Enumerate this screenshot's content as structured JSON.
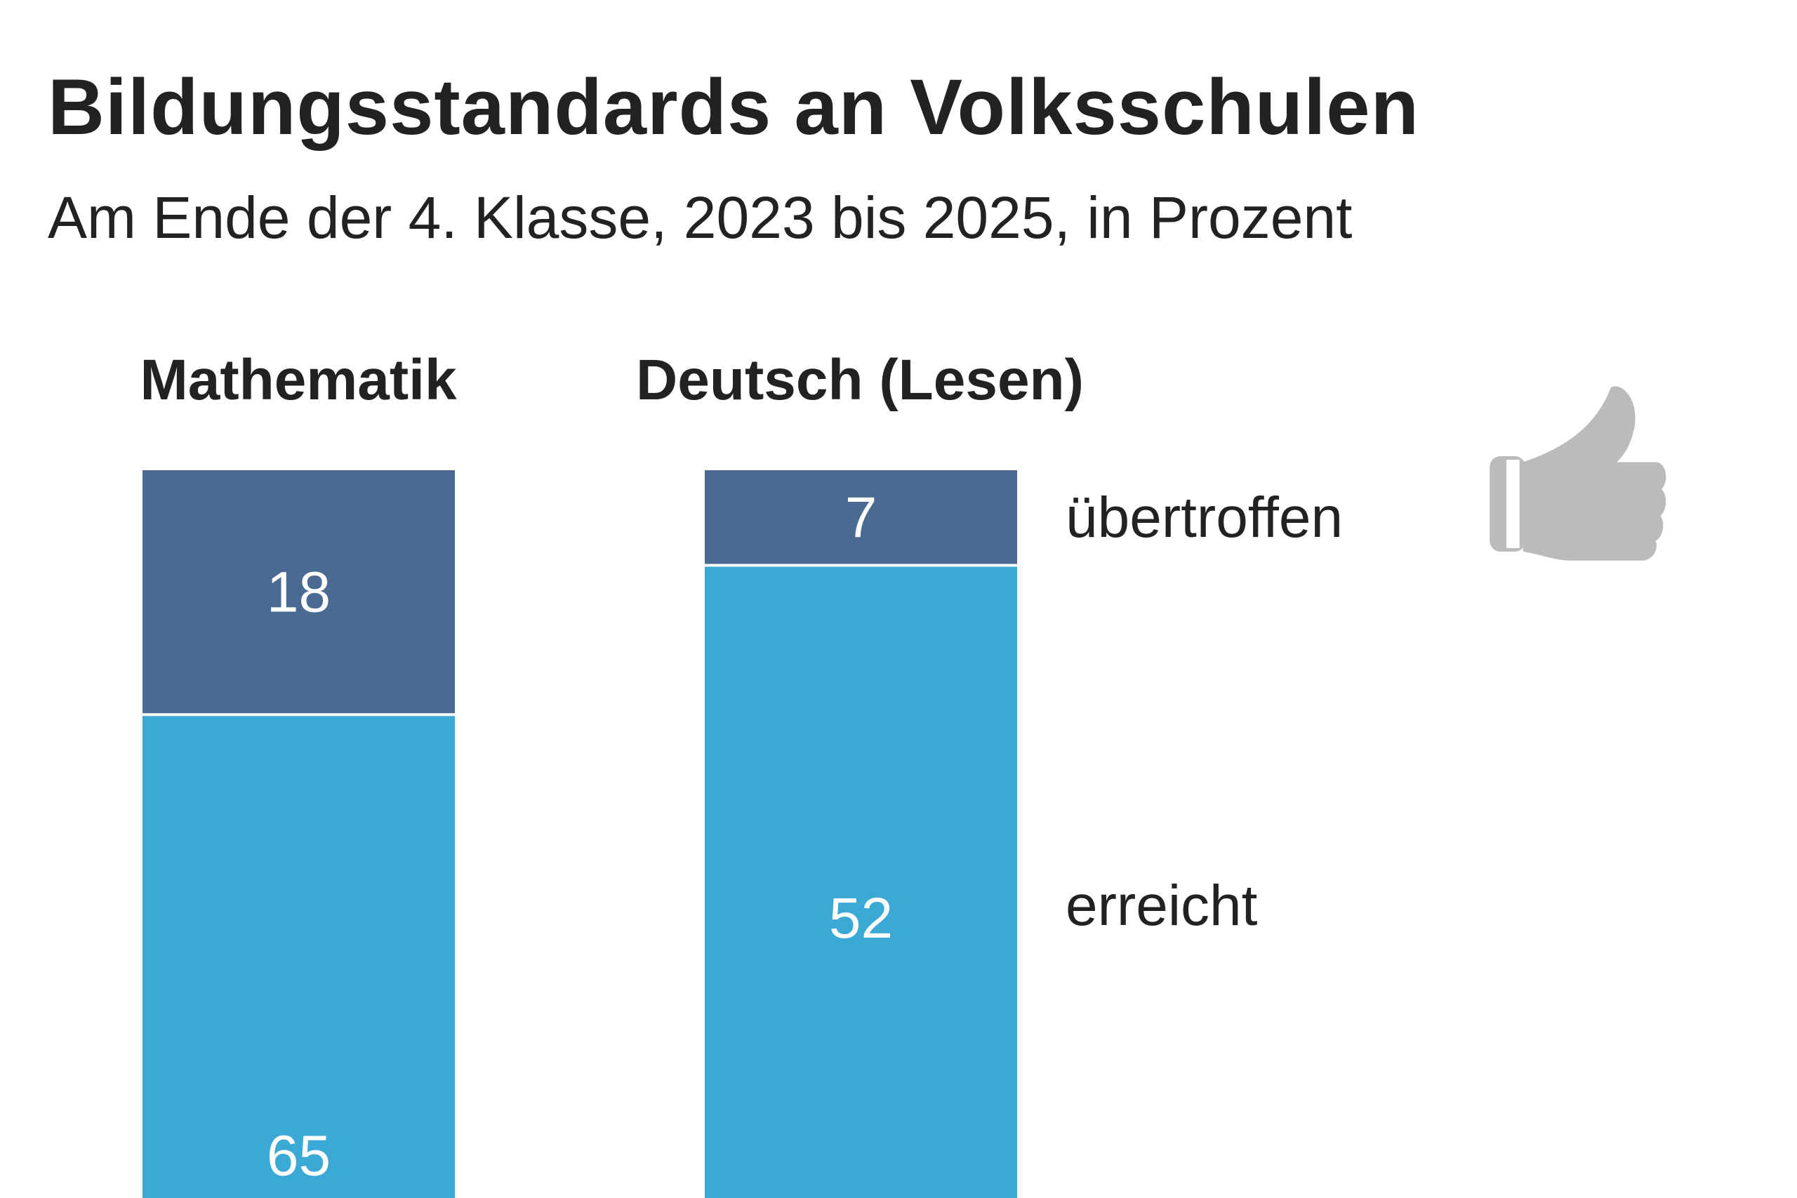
{
  "chart_data": {
    "type": "stacked-bar",
    "title": "Bildungsstandards an Volksschulen",
    "subtitle": "Am Ende der 4. Klasse, 2023 bis 2025, in Prozent",
    "categories": [
      "Mathematik",
      "Deutsch (Lesen)"
    ],
    "series": [
      {
        "name": "übertroffen",
        "values": [
          18,
          7
        ],
        "color": "#4a6a92"
      },
      {
        "name": "erreicht",
        "values": [
          65,
          52
        ],
        "color": "#3aa9d5"
      }
    ],
    "legend_placement": "right",
    "grid": false,
    "icon": "thumbs-up-icon"
  }
}
